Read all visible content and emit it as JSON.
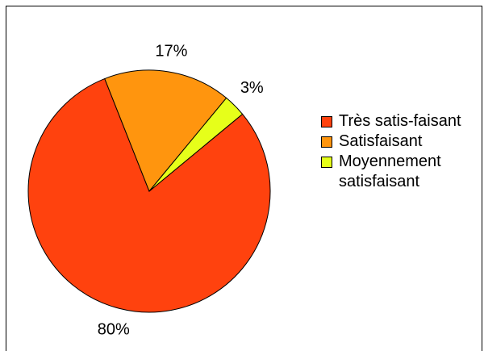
{
  "chart_data": {
    "type": "pie",
    "categories": [
      "Très satis-faisant",
      "Satisfaisant",
      "Moyennement satisfaisant"
    ],
    "values": [
      80,
      17,
      3
    ],
    "value_labels": [
      "80%",
      "17%",
      "3%"
    ],
    "colors": [
      "#ff420e",
      "#ff950e",
      "#e6ff1a"
    ],
    "legend": "right"
  }
}
